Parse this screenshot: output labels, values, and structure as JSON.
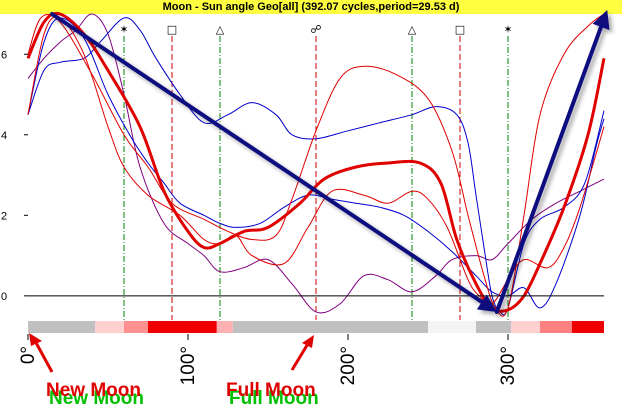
{
  "title": "Moon - Sun angle Geo[all]  (392.07 cycles,period=29.53 d)",
  "annotations": {
    "new_moon": "New Moon",
    "full_moon": "Full Moon"
  },
  "colors": {
    "title_bg": "#ffff40",
    "red_series": "#e00000",
    "blue_series": "#0000cc",
    "purple_series": "#800080",
    "arrow": "#0a0a80",
    "red_vline": "#cc0000",
    "green_vline": "#008000",
    "annotation_text": "#e00000",
    "annotation_shadow": "#00c000"
  },
  "chart_data": {
    "type": "line",
    "x_unit": "degrees",
    "xlim": [
      0,
      360
    ],
    "ylim": [
      -0.6,
      7
    ],
    "x_ticks": [
      {
        "value": 0,
        "label": "0°"
      },
      {
        "value": 100,
        "label": "100°"
      },
      {
        "value": 200,
        "label": "200°"
      },
      {
        "value": 300,
        "label": "300°"
      }
    ],
    "y_ticks": [
      {
        "value": 0,
        "label": "0"
      },
      {
        "value": 2,
        "label": "2"
      },
      {
        "value": 4,
        "label": "4"
      },
      {
        "value": 6,
        "label": "6"
      }
    ],
    "aspect_lines": [
      {
        "x": 60,
        "symbol": "✶",
        "color": "green"
      },
      {
        "x": 90,
        "symbol": "□",
        "color": "red"
      },
      {
        "x": 120,
        "symbol": "△",
        "color": "green"
      },
      {
        "x": 180,
        "symbol": "☍",
        "color": "red"
      },
      {
        "x": 240,
        "symbol": "△",
        "color": "green"
      },
      {
        "x": 270,
        "symbol": "□",
        "color": "red"
      },
      {
        "x": 300,
        "symbol": "✶",
        "color": "green"
      }
    ],
    "series": [
      {
        "style": "red-thick",
        "points": [
          [
            0,
            5.9
          ],
          [
            10,
            6.8
          ],
          [
            20,
            7.0
          ],
          [
            35,
            6.5
          ],
          [
            50,
            5.6
          ],
          [
            70,
            4.2
          ],
          [
            85,
            2.6
          ],
          [
            100,
            1.6
          ],
          [
            110,
            1.2
          ],
          [
            120,
            1.3
          ],
          [
            135,
            1.6
          ],
          [
            150,
            1.7
          ],
          [
            170,
            2.3
          ],
          [
            185,
            2.9
          ],
          [
            205,
            3.2
          ],
          [
            225,
            3.3
          ],
          [
            245,
            3.3
          ],
          [
            258,
            2.8
          ],
          [
            268,
            1.4
          ],
          [
            280,
            0.3
          ],
          [
            290,
            -0.3
          ],
          [
            300,
            -0.35
          ],
          [
            310,
            0.0
          ],
          [
            320,
            0.8
          ],
          [
            335,
            2.2
          ],
          [
            350,
            4.0
          ],
          [
            360,
            5.9
          ]
        ]
      },
      {
        "style": "red-thin-a",
        "points": [
          [
            0,
            6.0
          ],
          [
            8,
            6.9
          ],
          [
            20,
            6.8
          ],
          [
            40,
            5.5
          ],
          [
            60,
            4.0
          ],
          [
            75,
            3.2
          ],
          [
            90,
            2.3
          ],
          [
            110,
            1.9
          ],
          [
            125,
            1.6
          ],
          [
            140,
            1.4
          ],
          [
            155,
            1.5
          ],
          [
            165,
            2.4
          ],
          [
            180,
            4.1
          ],
          [
            195,
            5.4
          ],
          [
            210,
            5.7
          ],
          [
            230,
            5.5
          ],
          [
            250,
            4.9
          ],
          [
            265,
            3.6
          ],
          [
            275,
            2.0
          ],
          [
            285,
            0.5
          ],
          [
            292,
            -0.3
          ],
          [
            300,
            -0.3
          ],
          [
            310,
            2.0
          ],
          [
            320,
            4.5
          ],
          [
            335,
            6.0
          ],
          [
            350,
            6.7
          ],
          [
            360,
            7.0
          ]
        ]
      },
      {
        "style": "red-thin-b",
        "points": [
          [
            0,
            4.5
          ],
          [
            10,
            6.5
          ],
          [
            20,
            6.9
          ],
          [
            35,
            6.0
          ],
          [
            50,
            4.2
          ],
          [
            60,
            3.2
          ],
          [
            75,
            2.5
          ],
          [
            95,
            2.0
          ],
          [
            110,
            1.4
          ],
          [
            120,
            1.3
          ],
          [
            130,
            1.5
          ],
          [
            140,
            1.0
          ],
          [
            160,
            0.8
          ],
          [
            175,
            1.7
          ],
          [
            190,
            2.6
          ],
          [
            210,
            2.5
          ],
          [
            225,
            2.3
          ],
          [
            240,
            2.6
          ],
          [
            250,
            2.4
          ],
          [
            262,
            1.7
          ],
          [
            275,
            0.4
          ],
          [
            282,
            0.0
          ],
          [
            290,
            -0.2
          ],
          [
            300,
            0.4
          ],
          [
            310,
            0.9
          ],
          [
            325,
            0.7
          ],
          [
            335,
            1.2
          ],
          [
            345,
            2.2
          ],
          [
            360,
            4.2
          ]
        ]
      },
      {
        "style": "blue-a",
        "points": [
          [
            0,
            4.5
          ],
          [
            10,
            5.6
          ],
          [
            20,
            5.8
          ],
          [
            35,
            5.9
          ],
          [
            45,
            6.3
          ],
          [
            60,
            6.9
          ],
          [
            70,
            6.6
          ],
          [
            80,
            5.9
          ],
          [
            95,
            5.0
          ],
          [
            110,
            4.3
          ],
          [
            125,
            4.5
          ],
          [
            140,
            4.8
          ],
          [
            155,
            4.5
          ],
          [
            165,
            4.0
          ],
          [
            180,
            3.9
          ],
          [
            200,
            4.1
          ],
          [
            220,
            4.3
          ],
          [
            240,
            4.5
          ],
          [
            255,
            4.7
          ],
          [
            268,
            4.5
          ],
          [
            275,
            3.8
          ],
          [
            280,
            2.5
          ],
          [
            285,
            1.2
          ],
          [
            290,
            0.0
          ],
          [
            295,
            -0.4
          ],
          [
            300,
            -0.3
          ],
          [
            310,
            1.3
          ],
          [
            320,
            1.9
          ],
          [
            335,
            2.2
          ],
          [
            348,
            2.8
          ],
          [
            360,
            4.6
          ]
        ]
      },
      {
        "style": "blue-b",
        "points": [
          [
            0,
            4.5
          ],
          [
            10,
            6.3
          ],
          [
            20,
            6.9
          ],
          [
            35,
            6.4
          ],
          [
            50,
            5.0
          ],
          [
            65,
            3.9
          ],
          [
            75,
            3.3
          ],
          [
            85,
            2.8
          ],
          [
            95,
            2.3
          ],
          [
            110,
            2.0
          ],
          [
            120,
            1.8
          ],
          [
            130,
            1.7
          ],
          [
            145,
            1.8
          ],
          [
            160,
            2.2
          ],
          [
            175,
            2.5
          ],
          [
            190,
            2.4
          ],
          [
            205,
            2.3
          ],
          [
            220,
            2.2
          ],
          [
            235,
            2.0
          ],
          [
            250,
            1.6
          ],
          [
            265,
            1.1
          ],
          [
            280,
            0.5
          ],
          [
            290,
            0.1
          ],
          [
            300,
            0.0
          ],
          [
            310,
            0.2
          ],
          [
            320,
            -0.3
          ],
          [
            330,
            0.3
          ],
          [
            345,
            2.0
          ],
          [
            355,
            3.7
          ],
          [
            360,
            4.4
          ]
        ]
      },
      {
        "style": "purple",
        "points": [
          [
            0,
            5.4
          ],
          [
            10,
            5.9
          ],
          [
            20,
            6.3
          ],
          [
            30,
            6.6
          ],
          [
            40,
            7.0
          ],
          [
            50,
            6.5
          ],
          [
            60,
            5.0
          ],
          [
            70,
            3.2
          ],
          [
            85,
            1.8
          ],
          [
            100,
            1.3
          ],
          [
            110,
            1.0
          ],
          [
            120,
            0.6
          ],
          [
            135,
            0.7
          ],
          [
            150,
            0.9
          ],
          [
            165,
            0.3
          ],
          [
            180,
            -0.4
          ],
          [
            195,
            -0.2
          ],
          [
            210,
            0.5
          ],
          [
            225,
            0.4
          ],
          [
            240,
            0.1
          ],
          [
            255,
            0.5
          ],
          [
            265,
            0.9
          ],
          [
            280,
            1.0
          ],
          [
            290,
            0.9
          ],
          [
            300,
            1.3
          ],
          [
            315,
            1.9
          ],
          [
            330,
            2.3
          ],
          [
            345,
            2.6
          ],
          [
            360,
            2.9
          ]
        ]
      }
    ],
    "phase_band": [
      {
        "from": 0,
        "to": 42,
        "color": "#c0c0c0"
      },
      {
        "from": 42,
        "to": 60,
        "color": "#ffd0d0"
      },
      {
        "from": 60,
        "to": 75,
        "color": "#ff9090"
      },
      {
        "from": 75,
        "to": 118,
        "color": "#ee0000"
      },
      {
        "from": 118,
        "to": 128,
        "color": "#ffb0b0"
      },
      {
        "from": 128,
        "to": 250,
        "color": "#c0c0c0"
      },
      {
        "from": 250,
        "to": 280,
        "color": "#f4f4f4"
      },
      {
        "from": 280,
        "to": 302,
        "color": "#c0c0c0"
      },
      {
        "from": 302,
        "to": 320,
        "color": "#ffd0d0"
      },
      {
        "from": 320,
        "to": 340,
        "color": "#ff8080"
      },
      {
        "from": 340,
        "to": 360,
        "color": "#ee0000"
      }
    ],
    "trend_arrows": [
      {
        "from": [
          15,
          7.0
        ],
        "to": [
          293,
          -0.4
        ]
      },
      {
        "from": [
          293,
          -0.4
        ],
        "to": [
          362,
          7.1
        ]
      }
    ]
  }
}
